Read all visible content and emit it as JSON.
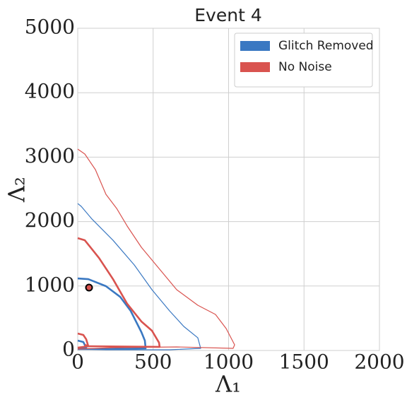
{
  "chart_data": {
    "type": "contour",
    "title": "Event 4",
    "x_label": "Λ₁",
    "y_label": "Λ₂",
    "xlim": [
      0,
      2000
    ],
    "xticks": [
      0,
      500,
      1000,
      1500,
      2000
    ],
    "ylim": [
      0,
      5000
    ],
    "yticks": [
      0,
      1000,
      2000,
      3000,
      4000,
      5000
    ],
    "grid": true,
    "legend_position": "upper right",
    "series": [
      {
        "name": "Glitch Removed",
        "color": "#3a78c2",
        "lines": [
          {
            "x": [
              0,
              23,
              94,
              234,
              375,
              492,
              609,
              703,
              796,
              815,
              609,
              187,
              0
            ],
            "y": [
              2280,
              2237,
              2040,
              1710,
              1327,
              943,
              614,
              373,
              197,
              33,
              11,
              11,
              22
            ]
          },
          {
            "x": [
              0,
              70,
              187,
              281,
              351,
              422,
              445,
              450,
              187,
              0
            ],
            "y": [
              1118,
              1107,
              998,
              833,
              614,
              285,
              154,
              33,
              22,
              22
            ]
          },
          {
            "x": [
              0,
              37,
              56,
              9
            ],
            "y": [
              154,
              132,
              44,
              22
            ]
          }
        ]
      },
      {
        "name": "No Noise",
        "color": "#d9534f",
        "lines": [
          {
            "x": [
              0,
              47,
              117,
              187,
              258,
              328,
              422,
              539,
              656,
              796,
              913,
              984,
              1040,
              1030,
              656,
              234,
              0
            ],
            "y": [
              3125,
              3048,
              2807,
              2423,
              2204,
              1930,
              1601,
              1272,
              943,
              702,
              559,
              340,
              88,
              33,
              55,
              44,
              22
            ]
          },
          {
            "x": [
              0,
              47,
              141,
              234,
              328,
              422,
              492,
              539,
              543,
              70,
              47
            ],
            "y": [
              1743,
              1710,
              1436,
              1107,
              724,
              450,
              307,
              121,
              55,
              66,
              88
            ]
          },
          {
            "x": [
              0,
              37,
              56,
              70,
              0
            ],
            "y": [
              263,
              241,
              175,
              66,
              44
            ]
          }
        ]
      }
    ],
    "point": {
      "x": 75,
      "y": 976,
      "color": "#d9534f"
    }
  }
}
